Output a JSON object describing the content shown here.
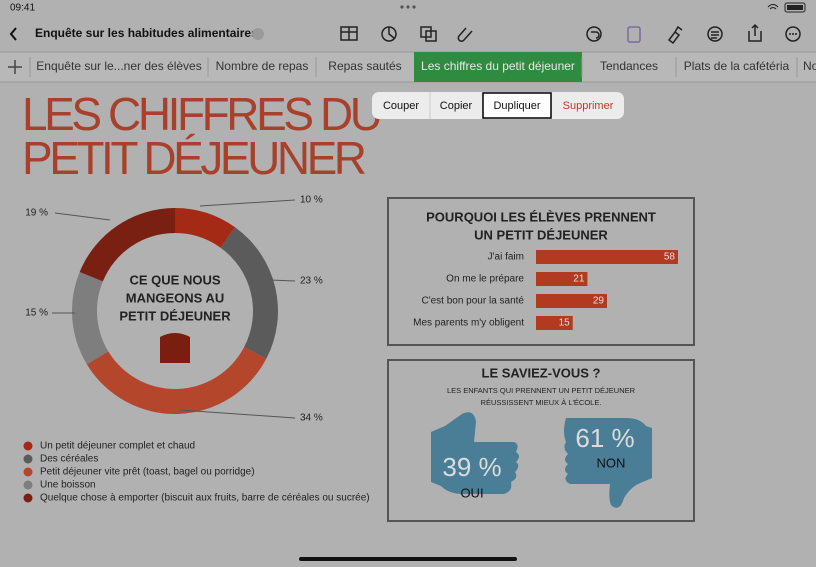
{
  "status_bar": {
    "time": "09:41"
  },
  "toolbar": {
    "document_title": "Enquête sur les habitudes alimentaires"
  },
  "tabs": [
    "Enquête sur le...ner des élèves",
    "Nombre de repas",
    "Repas sautés",
    "Les chiffres du petit déjeuner",
    "Tendances",
    "Plats de la cafétéria",
    "No"
  ],
  "context_menu": [
    "Couper",
    "Copier",
    "Dupliquer",
    "Supprimer"
  ],
  "sheet": {
    "title_lines": [
      "LES CHIFFRES DU",
      "PETIT DÉJEUNER"
    ],
    "did_you_know": {
      "title": "LE SAVIEZ-VOUS ?",
      "text_lines": [
        "LES ENFANTS QUI PRENNENT UN PETIT DÉJEUNER",
        "RÉUSSISSENT MIEUX À L'ÉCOLE."
      ],
      "yes": {
        "percent": "39 %",
        "caption": "OUI"
      },
      "no": {
        "percent": "61 %",
        "caption": "NON"
      }
    }
  },
  "chart_data": [
    {
      "type": "pie",
      "center_label": [
        "CE QUE NOUS",
        "MANGEONS AU",
        "PETIT DÉJEUNER"
      ],
      "categories": [
        "Un petit déjeuner complet et chaud",
        "Des céréales",
        "Petit déjeuner vite prêt (toast, bagel ou porridge)",
        "Une boisson",
        "Quelque chose à emporter (biscuit aux fruits, barre de céréales ou sucrée)"
      ],
      "values": [
        10,
        23,
        34,
        15,
        19
      ],
      "value_labels": [
        "10 %",
        "23 %",
        "34 %",
        "15 %",
        "19 %"
      ],
      "colors": [
        "#a52a16",
        "#5b5b5b",
        "#b4462c",
        "#7e7e7e",
        "#7a2012"
      ]
    },
    {
      "type": "bar",
      "title_lines": [
        "POURQUOI LES ÉLÈVES PRENNENT",
        "UN PETIT DÉJEUNER"
      ],
      "categories": [
        "J'ai faim",
        "On me le prépare",
        "C'est bon pour la santé",
        "Mes parents m'y obligent"
      ],
      "values": [
        58,
        21,
        29,
        15
      ],
      "color": "#b23a20"
    }
  ]
}
